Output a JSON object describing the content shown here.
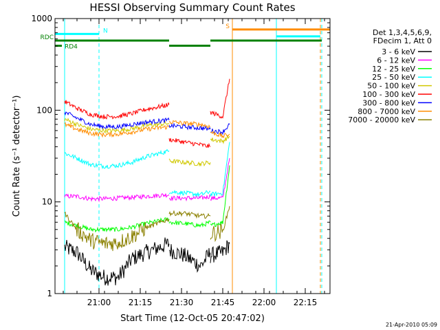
{
  "chart_data": {
    "type": "line",
    "title": "HESSI Observing Summary Count Rates",
    "xlabel": "Start Time (12-Oct-05 20:47:02)",
    "ylabel": "Count Rate (s⁻¹ detector⁻¹)",
    "yscale": "log",
    "ylim": [
      1,
      1000
    ],
    "xlim_minutes": [
      -3.0,
      97.0
    ],
    "x_ticks": [
      {
        "label": "21:00",
        "minutes": 13
      },
      {
        "label": "21:15",
        "minutes": 28
      },
      {
        "label": "21:30",
        "minutes": 43
      },
      {
        "label": "21:45",
        "minutes": 58
      },
      {
        "label": "22:00",
        "minutes": 73
      },
      {
        "label": "22:15",
        "minutes": 88
      }
    ],
    "y_ticks": [
      {
        "label": "1",
        "value": 1
      },
      {
        "label": "10",
        "value": 10
      },
      {
        "label": "100",
        "value": 100
      },
      {
        "label": "1000",
        "value": 1000
      }
    ],
    "legend": {
      "placement": "right",
      "header": [
        "Det 1,3,4,5,6,9,",
        "FDecim 1, Att 0"
      ],
      "entries": [
        {
          "label": "3 - 6 keV",
          "color": "#000000"
        },
        {
          "label": "6 - 12 keV",
          "color": "#ff00ff"
        },
        {
          "label": "12 - 25 keV",
          "color": "#00ff00"
        },
        {
          "label": "25 - 50 keV",
          "color": "#00ffff"
        },
        {
          "label": "50 - 100 keV",
          "color": "#d0c800"
        },
        {
          "label": "100 - 300 keV",
          "color": "#ff0000"
        },
        {
          "label": "300 - 800 keV",
          "color": "#0000ff"
        },
        {
          "label": "800 - 7000 keV",
          "color": "#ff8c00"
        },
        {
          "label": "7000 - 20000 keV",
          "color": "#8b8000"
        }
      ]
    },
    "flag_bars": [
      {
        "label": "N",
        "color": "#00ffff",
        "value": 680,
        "segments": [
          [
            -3.0,
            13.0
          ]
        ]
      },
      {
        "label": "",
        "color": "#00ffff",
        "value": 640,
        "segments": [
          [
            77.5,
            93.5
          ]
        ]
      },
      {
        "label": "S",
        "color": "#ff8c00",
        "value": 760,
        "segments": [
          [
            61.5,
            97.0
          ]
        ]
      },
      {
        "label": "RDC",
        "color": "#008000",
        "value": 575,
        "segments": [
          [
            -3.0,
            38.5
          ],
          [
            53.5,
            94.0
          ]
        ]
      },
      {
        "label": "RD4",
        "color": "#008000",
        "value": 505,
        "segments": [
          [
            -3.0,
            -0.5
          ],
          [
            38.5,
            53.5
          ]
        ]
      }
    ],
    "vertical_lines": [
      {
        "minutes": 0.5,
        "color": "#00ffff",
        "style": "solid"
      },
      {
        "minutes": 13.0,
        "color": "#00ffff",
        "style": "dashed"
      },
      {
        "minutes": 61.5,
        "color": "#ff8c00",
        "style": "solid"
      },
      {
        "minutes": 77.5,
        "color": "#00ffff",
        "style": "solid"
      },
      {
        "minutes": 93.5,
        "color": "#ff8c00",
        "style": "dashed"
      },
      {
        "minutes": 94.0,
        "color": "#00ffff",
        "style": "dashed"
      }
    ],
    "series": [
      {
        "name": "3 - 6 keV",
        "color": "#000000",
        "segments": [
          {
            "x": [
              0.5,
              5,
              10,
              15,
              20,
              25,
              30,
              38.5
            ],
            "y": [
              3.2,
              2.8,
              1.8,
              1.5,
              1.5,
              2.4,
              2.8,
              3.5
            ]
          },
          {
            "x": [
              38.5,
              44,
              50,
              53.5
            ],
            "y": [
              3.0,
              2.6,
              2.0,
              2.8
            ]
          },
          {
            "x": [
              53.5,
              58,
              60.5
            ],
            "y": [
              2.6,
              2.8,
              3.5
            ]
          }
        ]
      },
      {
        "name": "6 - 12 keV",
        "color": "#ff00ff",
        "segments": [
          {
            "x": [
              0.5,
              5,
              10,
              15,
              20,
              25,
              30,
              38.5
            ],
            "y": [
              11.5,
              11.5,
              10.8,
              10.8,
              11.0,
              11.2,
              11.5,
              12.0
            ]
          },
          {
            "x": [
              38.5,
              44,
              50,
              53.5
            ],
            "y": [
              11.0,
              11.0,
              11.0,
              11.5
            ]
          },
          {
            "x": [
              53.5,
              58,
              60.5
            ],
            "y": [
              11.0,
              11.0,
              30.0
            ]
          }
        ]
      },
      {
        "name": "12 - 25 keV",
        "color": "#00ff00",
        "segments": [
          {
            "x": [
              0.5,
              5,
              10,
              15,
              20,
              25,
              30,
              38.5
            ],
            "y": [
              6.0,
              5.5,
              5.0,
              5.0,
              5.0,
              5.3,
              5.8,
              6.5
            ]
          },
          {
            "x": [
              38.5,
              44,
              50,
              53.5
            ],
            "y": [
              6.0,
              5.8,
              5.5,
              6.0
            ]
          },
          {
            "x": [
              53.5,
              58,
              60.5
            ],
            "y": [
              5.5,
              6.0,
              25.0
            ]
          }
        ]
      },
      {
        "name": "25 - 50 keV",
        "color": "#00ffff",
        "segments": [
          {
            "x": [
              0.5,
              5,
              10,
              15,
              20,
              25,
              30,
              38.5
            ],
            "y": [
              34,
              30,
              25.5,
              24.5,
              25,
              27,
              31,
              36
            ]
          },
          {
            "x": [
              38.5,
              44,
              50,
              53.5
            ],
            "y": [
              13.0,
              12.5,
              12.0,
              13.0
            ]
          },
          {
            "x": [
              53.5,
              58,
              60.5
            ],
            "y": [
              12.0,
              12.5,
              45.0
            ]
          }
        ]
      },
      {
        "name": "50 - 100 keV",
        "color": "#d0c800",
        "segments": [
          {
            "x": [
              0.5,
              5,
              10,
              15,
              20,
              25,
              30,
              38.5
            ],
            "y": [
              80,
              70,
              62,
              60,
              60,
              63,
              68,
              72
            ]
          },
          {
            "x": [
              38.5,
              44,
              50,
              53.5
            ],
            "y": [
              28,
              27,
              26,
              27
            ]
          },
          {
            "x": [
              53.5,
              58,
              60.5
            ],
            "y": [
              48,
              46,
              52
            ]
          }
        ]
      },
      {
        "name": "100 - 300 keV",
        "color": "#ff0000",
        "segments": [
          {
            "x": [
              0.5,
              5,
              10,
              15,
              20,
              25,
              30,
              38.5
            ],
            "y": [
              125,
              105,
              90,
              85,
              86,
              92,
              102,
              115
            ]
          },
          {
            "x": [
              38.5,
              44,
              50,
              53.5
            ],
            "y": [
              48,
              45,
              42,
              40
            ]
          },
          {
            "x": [
              53.5,
              58,
              60.5
            ],
            "y": [
              95,
              85,
              220
            ]
          }
        ]
      },
      {
        "name": "300 - 800 keV",
        "color": "#0000ff",
        "segments": [
          {
            "x": [
              0.5,
              5,
              10,
              15,
              20,
              25,
              30,
              38.5
            ],
            "y": [
              95,
              82,
              70,
              66,
              66,
              70,
              74,
              78
            ]
          },
          {
            "x": [
              38.5,
              44,
              50,
              53.5
            ],
            "y": [
              68,
              66,
              64,
              62
            ]
          },
          {
            "x": [
              53.5,
              58,
              60.5
            ],
            "y": [
              60,
              58,
              70
            ]
          }
        ]
      },
      {
        "name": "800 - 7000 keV",
        "color": "#ff8c00",
        "segments": [
          {
            "x": [
              0.5,
              5,
              10,
              15,
              20,
              25,
              30,
              38.5
            ],
            "y": [
              70,
              62,
              56,
              54,
              55,
              58,
              62,
              66
            ]
          },
          {
            "x": [
              38.5,
              44,
              50,
              53.5
            ],
            "y": [
              75,
              72,
              70,
              66
            ]
          },
          {
            "x": [
              53.5,
              58,
              60.5
            ],
            "y": [
              58,
              52,
              55
            ]
          }
        ]
      },
      {
        "name": "7000 - 20000 keV",
        "color": "#8b8000",
        "segments": [
          {
            "x": [
              0.5,
              5,
              10,
              15,
              20,
              25,
              30,
              38.5
            ],
            "y": [
              7.5,
              5.0,
              3.8,
              3.5,
              3.6,
              4.2,
              5.2,
              6.5
            ]
          },
          {
            "x": [
              38.5,
              44,
              50,
              53.5
            ],
            "y": [
              7.5,
              7.5,
              7.0,
              7.0
            ]
          },
          {
            "x": [
              53.5,
              58,
              60.5
            ],
            "y": [
              4.5,
              4.8,
              9.0
            ]
          }
        ]
      }
    ]
  },
  "footer": {
    "timestamp": "21-Apr-2010 05:09"
  }
}
